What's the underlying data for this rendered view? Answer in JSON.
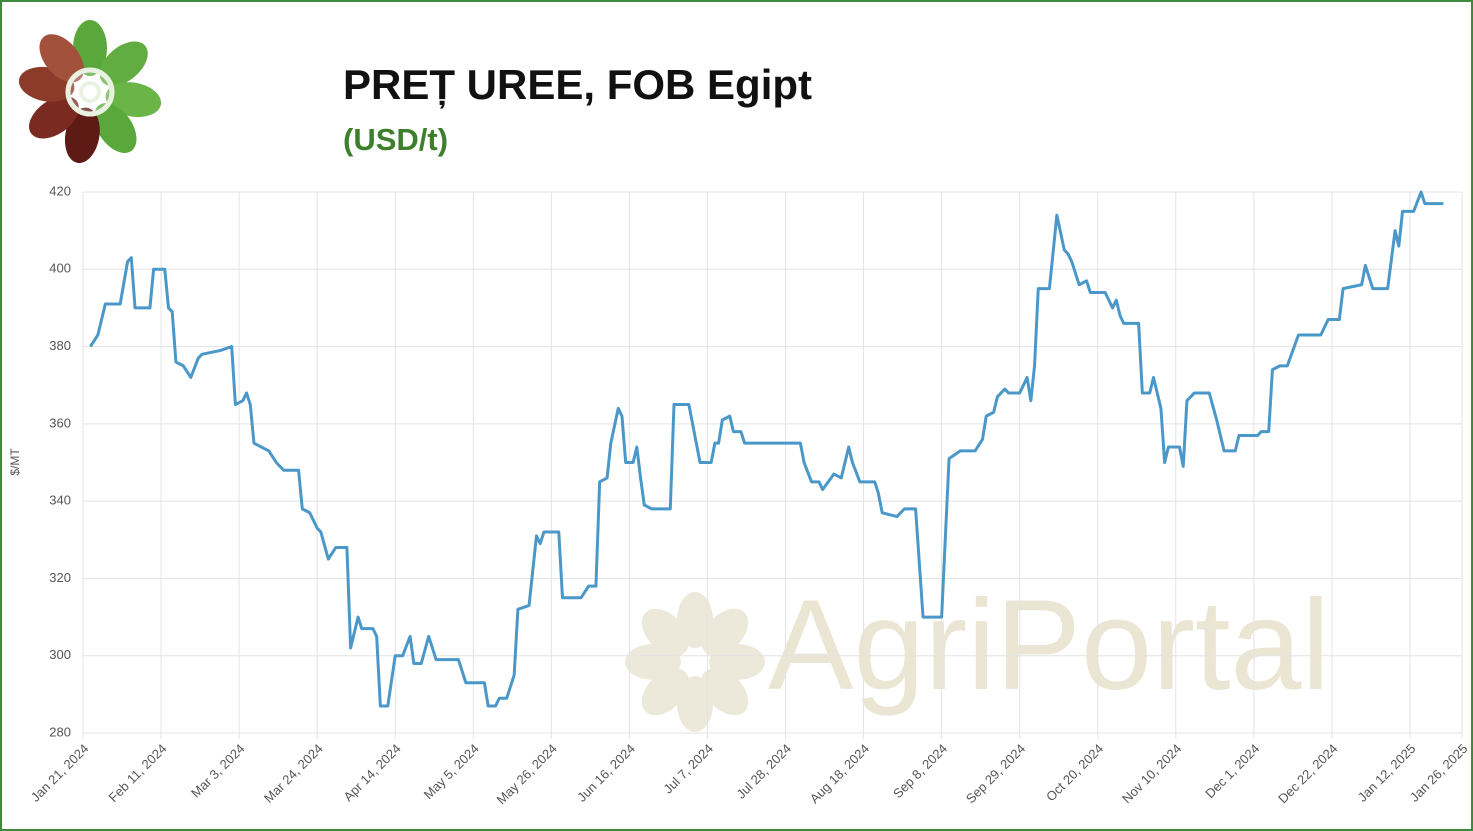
{
  "chart_data": {
    "type": "line",
    "title": "PREȚ UREE, FOB Egipt",
    "subtitle": "(USD/t)",
    "y_label": "$/MT",
    "watermark": "AgriPortal",
    "color": "#4a98c9",
    "grid": true,
    "x": [
      "2024-01-23",
      "2024-01-25",
      "2024-01-27",
      "2024-01-31",
      "2024-02-02",
      "2024-02-03",
      "2024-02-04",
      "2024-02-08",
      "2024-02-09",
      "2024-02-12",
      "2024-02-13",
      "2024-02-14",
      "2024-02-15",
      "2024-02-17",
      "2024-02-19",
      "2024-02-21",
      "2024-02-22",
      "2024-02-27",
      "2024-03-01",
      "2024-03-02",
      "2024-03-04",
      "2024-03-05",
      "2024-03-06",
      "2024-03-07",
      "2024-03-09",
      "2024-03-11",
      "2024-03-13",
      "2024-03-15",
      "2024-03-19",
      "2024-03-20",
      "2024-03-22",
      "2024-03-24",
      "2024-03-25",
      "2024-03-27",
      "2024-03-29",
      "2024-04-01",
      "2024-04-02",
      "2024-04-04",
      "2024-04-05",
      "2024-04-08",
      "2024-04-09",
      "2024-04-10",
      "2024-04-12",
      "2024-04-14",
      "2024-04-16",
      "2024-04-18",
      "2024-04-19",
      "2024-04-21",
      "2024-04-23",
      "2024-04-25",
      "2024-05-01",
      "2024-05-03",
      "2024-05-08",
      "2024-05-09",
      "2024-05-11",
      "2024-05-12",
      "2024-05-14",
      "2024-05-16",
      "2024-05-17",
      "2024-05-20",
      "2024-05-22",
      "2024-05-23",
      "2024-05-24",
      "2024-05-28",
      "2024-05-29",
      "2024-06-03",
      "2024-06-05",
      "2024-06-07",
      "2024-06-08",
      "2024-06-10",
      "2024-06-11",
      "2024-06-13",
      "2024-06-14",
      "2024-06-15",
      "2024-06-17",
      "2024-06-18",
      "2024-06-19",
      "2024-06-20",
      "2024-06-22",
      "2024-06-27",
      "2024-06-28",
      "2024-07-02",
      "2024-07-05",
      "2024-07-08",
      "2024-07-09",
      "2024-07-10",
      "2024-07-11",
      "2024-07-13",
      "2024-07-14",
      "2024-07-16",
      "2024-07-17",
      "2024-08-01",
      "2024-08-02",
      "2024-08-04",
      "2024-08-06",
      "2024-08-07",
      "2024-08-10",
      "2024-08-12",
      "2024-08-14",
      "2024-08-15",
      "2024-08-17",
      "2024-08-21",
      "2024-08-22",
      "2024-08-23",
      "2024-08-27",
      "2024-08-29",
      "2024-09-01",
      "2024-09-03",
      "2024-09-08",
      "2024-09-10",
      "2024-09-13",
      "2024-09-17",
      "2024-09-19",
      "2024-09-20",
      "2024-09-22",
      "2024-09-23",
      "2024-09-25",
      "2024-09-26",
      "2024-09-29",
      "2024-10-01",
      "2024-10-02",
      "2024-10-03",
      "2024-10-04",
      "2024-10-07",
      "2024-10-09",
      "2024-10-11",
      "2024-10-12",
      "2024-10-13",
      "2024-10-15",
      "2024-10-17",
      "2024-10-18",
      "2024-10-22",
      "2024-10-24",
      "2024-10-25",
      "2024-10-26",
      "2024-10-27",
      "2024-10-31",
      "2024-11-01",
      "2024-11-03",
      "2024-11-04",
      "2024-11-06",
      "2024-11-07",
      "2024-11-08",
      "2024-11-11",
      "2024-11-12",
      "2024-11-13",
      "2024-11-15",
      "2024-11-19",
      "2024-11-21",
      "2024-11-23",
      "2024-11-26",
      "2024-11-27",
      "2024-12-02",
      "2024-12-03",
      "2024-12-05",
      "2024-12-06",
      "2024-12-08",
      "2024-12-10",
      "2024-12-13",
      "2024-12-19",
      "2024-12-21",
      "2024-12-24",
      "2024-12-25",
      "2024-12-30",
      "2024-12-31",
      "2025-01-02",
      "2025-01-06",
      "2025-01-08",
      "2025-01-09",
      "2025-01-10",
      "2025-01-13",
      "2025-01-15",
      "2025-01-16",
      "2025-01-21"
    ],
    "values": [
      380,
      383,
      391,
      391,
      402,
      403,
      390,
      390,
      400,
      400,
      390,
      389,
      376,
      375,
      372,
      377,
      378,
      379,
      380,
      365,
      366,
      368,
      365,
      355,
      354,
      353,
      350,
      348,
      348,
      338,
      337,
      333,
      332,
      325,
      328,
      328,
      302,
      310,
      307,
      307,
      305,
      287,
      287,
      300,
      300,
      305,
      298,
      298,
      305,
      299,
      299,
      293,
      293,
      287,
      287,
      289,
      289,
      295,
      312,
      313,
      331,
      329,
      332,
      332,
      315,
      315,
      318,
      318,
      345,
      346,
      355,
      364,
      362,
      350,
      350,
      354,
      346,
      339,
      338,
      338,
      365,
      365,
      350,
      350,
      355,
      355,
      361,
      362,
      358,
      358,
      355,
      355,
      350,
      345,
      345,
      343,
      347,
      346,
      354,
      350,
      345,
      345,
      342,
      337,
      336,
      338,
      338,
      310,
      310,
      351,
      353,
      353,
      356,
      362,
      363,
      367,
      369,
      368,
      368,
      372,
      366,
      375,
      395,
      395,
      414,
      405,
      404,
      402,
      396,
      397,
      394,
      394,
      390,
      392,
      388,
      386,
      386,
      368,
      368,
      372,
      364,
      350,
      354,
      354,
      349,
      366,
      368,
      368,
      361,
      353,
      353,
      357,
      357,
      358,
      358,
      374,
      375,
      375,
      383,
      383,
      387,
      387,
      395,
      396,
      401,
      395,
      395,
      410,
      406,
      415,
      415,
      420,
      417,
      417
    ],
    "xlim": [
      "2024-01-21",
      "2025-01-26"
    ],
    "xticks": [
      {
        "value": "2024-01-21",
        "label": "Jan 21, 2024"
      },
      {
        "value": "2024-02-11",
        "label": "Feb 11, 2024"
      },
      {
        "value": "2024-03-03",
        "label": "Mar 3, 2024"
      },
      {
        "value": "2024-03-24",
        "label": "Mar 24, 2024"
      },
      {
        "value": "2024-04-14",
        "label": "Apr 14, 2024"
      },
      {
        "value": "2024-05-05",
        "label": "May 5, 2024"
      },
      {
        "value": "2024-05-26",
        "label": "May 26, 2024"
      },
      {
        "value": "2024-06-16",
        "label": "Jun 16, 2024"
      },
      {
        "value": "2024-07-07",
        "label": "Jul 7, 2024"
      },
      {
        "value": "2024-07-28",
        "label": "Jul 28, 2024"
      },
      {
        "value": "2024-08-18",
        "label": "Aug 18, 2024"
      },
      {
        "value": "2024-09-08",
        "label": "Sep 8, 2024"
      },
      {
        "value": "2024-09-29",
        "label": "Sep 29, 2024"
      },
      {
        "value": "2024-10-20",
        "label": "Oct 20, 2024"
      },
      {
        "value": "2024-11-10",
        "label": "Nov 10, 2024"
      },
      {
        "value": "2024-12-01",
        "label": "Dec 1, 2024"
      },
      {
        "value": "2024-12-22",
        "label": "Dec 22, 2024"
      },
      {
        "value": "2025-01-12",
        "label": "Jan 12, 2025"
      },
      {
        "value": "2025-01-26",
        "label": "Jan 26, 2025"
      }
    ],
    "ylim": [
      280,
      420
    ],
    "yticks": [
      280,
      300,
      320,
      340,
      360,
      380,
      400,
      420
    ]
  }
}
